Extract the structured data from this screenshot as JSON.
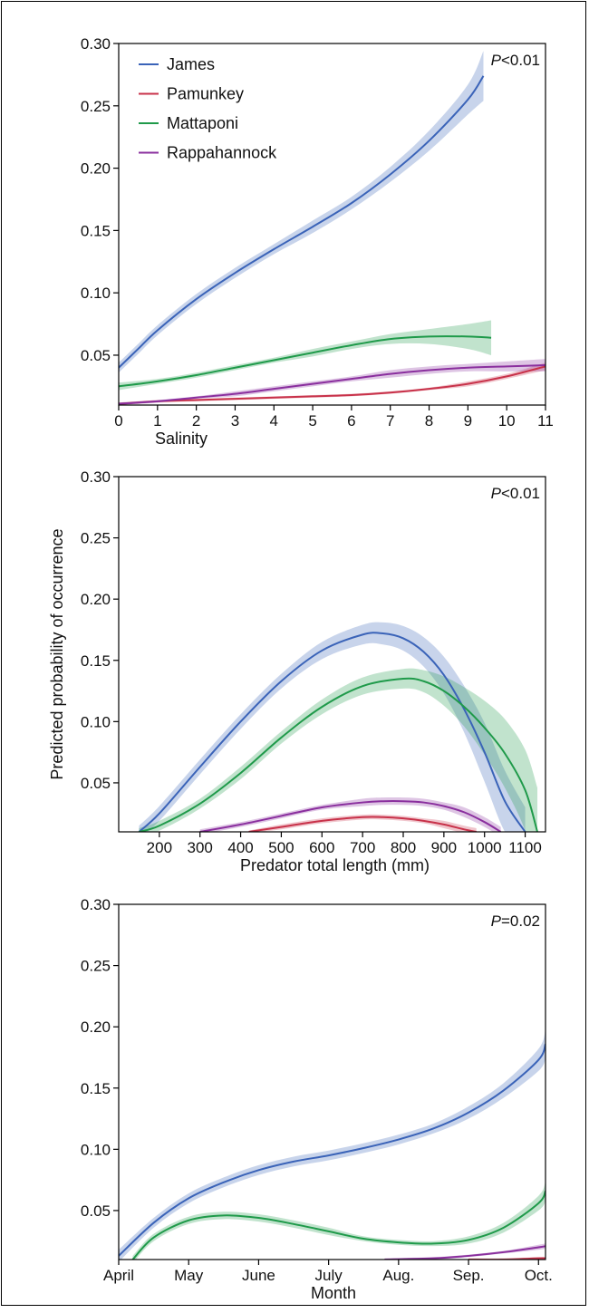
{
  "figure": {
    "ylabel": "Predicted probability of occurrence"
  },
  "colors": {
    "James": "#3a63b8",
    "Pamunkey": "#c8324a",
    "Mattaponi": "#1f9a4a",
    "Rappahannock": "#8a2f9e"
  },
  "chart_data": [
    {
      "type": "line",
      "xlabel": "Salinity",
      "ylabel": "",
      "annotation": {
        "prefix": "P",
        "text": "<0.01"
      },
      "xlim": [
        0,
        11
      ],
      "ylim": [
        0.01,
        0.3
      ],
      "xticks": [
        0,
        1,
        2,
        3,
        4,
        5,
        6,
        7,
        8,
        9,
        10,
        11
      ],
      "xtick_labels": [
        "0",
        "1",
        "2",
        "3",
        "4",
        "5",
        "6",
        "7",
        "8",
        "9",
        "10",
        "11"
      ],
      "yticks": [
        0.05,
        0.1,
        0.15,
        0.2,
        0.25,
        0.3
      ],
      "ytick_labels": [
        "0.05",
        "0.10",
        "0.15",
        "0.20",
        "0.25",
        "0.30"
      ],
      "legend": {
        "position": "top-left"
      },
      "series": [
        {
          "name": "James",
          "x": [
            0,
            0.5,
            1,
            2,
            3,
            4,
            5,
            6,
            7,
            8,
            9,
            9.4
          ],
          "y": [
            0.04,
            0.055,
            0.07,
            0.095,
            0.116,
            0.135,
            0.153,
            0.172,
            0.195,
            0.222,
            0.255,
            0.274
          ],
          "band": [
            0.004,
            0.004,
            0.004,
            0.004,
            0.004,
            0.004,
            0.005,
            0.005,
            0.006,
            0.008,
            0.012,
            0.02
          ]
        },
        {
          "name": "Pamunkey",
          "x": [
            0,
            1,
            2,
            3,
            4,
            5,
            6,
            7,
            8,
            9,
            10,
            11
          ],
          "y": [
            0.011,
            0.013,
            0.014,
            0.015,
            0.016,
            0.017,
            0.018,
            0.02,
            0.023,
            0.027,
            0.033,
            0.041
          ],
          "band": [
            0.001,
            0.001,
            0.001,
            0.001,
            0.001,
            0.001,
            0.001,
            0.001,
            0.001,
            0.002,
            0.002,
            0.003
          ]
        },
        {
          "name": "Mattaponi",
          "x": [
            0,
            1,
            2,
            3,
            4,
            5,
            6,
            7,
            8,
            9,
            9.6
          ],
          "y": [
            0.025,
            0.029,
            0.034,
            0.04,
            0.046,
            0.052,
            0.058,
            0.063,
            0.065,
            0.065,
            0.064
          ],
          "band": [
            0.003,
            0.002,
            0.002,
            0.002,
            0.002,
            0.003,
            0.003,
            0.004,
            0.006,
            0.01,
            0.014
          ]
        },
        {
          "name": "Rappahannock",
          "x": [
            0,
            1,
            2,
            3,
            4,
            5,
            6,
            7,
            8,
            9,
            10,
            11
          ],
          "y": [
            0.011,
            0.013,
            0.016,
            0.019,
            0.023,
            0.027,
            0.031,
            0.035,
            0.038,
            0.04,
            0.041,
            0.042
          ],
          "band": [
            0.001,
            0.001,
            0.001,
            0.002,
            0.002,
            0.002,
            0.002,
            0.003,
            0.003,
            0.003,
            0.004,
            0.005
          ]
        }
      ]
    },
    {
      "type": "line",
      "xlabel": "Predator total length (mm)",
      "ylabel": "",
      "annotation": {
        "prefix": "P",
        "text": "<0.01"
      },
      "xlim": [
        100,
        1150
      ],
      "ylim": [
        0.01,
        0.3
      ],
      "xticks": [
        200,
        300,
        400,
        500,
        600,
        700,
        800,
        900,
        1000,
        1100
      ],
      "xtick_labels": [
        "200",
        "300",
        "400",
        "500",
        "600",
        "700",
        "800",
        "900",
        "1000",
        "1100"
      ],
      "yticks": [
        0.05,
        0.1,
        0.15,
        0.2,
        0.25,
        0.3
      ],
      "ytick_labels": [
        "0.05",
        "0.10",
        "0.15",
        "0.20",
        "0.25",
        "0.30"
      ],
      "series": [
        {
          "name": "James",
          "x": [
            150,
            200,
            300,
            400,
            500,
            600,
            700,
            750,
            800,
            850,
            900,
            950,
            1000,
            1050,
            1100
          ],
          "y": [
            0.01,
            0.025,
            0.063,
            0.1,
            0.133,
            0.158,
            0.171,
            0.172,
            0.168,
            0.157,
            0.138,
            0.11,
            0.075,
            0.035,
            0.01
          ],
          "band": [
            0.005,
            0.006,
            0.006,
            0.006,
            0.006,
            0.007,
            0.008,
            0.009,
            0.01,
            0.012,
            0.015,
            0.019,
            0.024,
            0.025,
            0.02
          ]
        },
        {
          "name": "Mattaponi",
          "x": [
            150,
            200,
            300,
            400,
            500,
            600,
            700,
            800,
            850,
            900,
            950,
            1000,
            1050,
            1100,
            1130
          ],
          "y": [
            0.01,
            0.015,
            0.033,
            0.058,
            0.087,
            0.112,
            0.129,
            0.135,
            0.133,
            0.125,
            0.112,
            0.095,
            0.074,
            0.044,
            0.01
          ],
          "band": [
            0.003,
            0.004,
            0.004,
            0.005,
            0.005,
            0.006,
            0.007,
            0.008,
            0.009,
            0.012,
            0.016,
            0.022,
            0.028,
            0.033,
            0.036
          ]
        },
        {
          "name": "Pamunkey",
          "x": [
            420,
            500,
            600,
            700,
            750,
            800,
            850,
            900,
            950,
            980
          ],
          "y": [
            0.01,
            0.014,
            0.019,
            0.022,
            0.022,
            0.021,
            0.019,
            0.016,
            0.012,
            0.01
          ],
          "band": [
            0.001,
            0.002,
            0.002,
            0.002,
            0.002,
            0.002,
            0.002,
            0.003,
            0.003,
            0.003
          ]
        },
        {
          "name": "Rappahannock",
          "x": [
            300,
            400,
            500,
            600,
            700,
            750,
            800,
            850,
            900,
            950,
            1000,
            1040
          ],
          "y": [
            0.01,
            0.016,
            0.023,
            0.03,
            0.034,
            0.035,
            0.035,
            0.034,
            0.031,
            0.026,
            0.018,
            0.01
          ],
          "band": [
            0.002,
            0.002,
            0.002,
            0.002,
            0.003,
            0.003,
            0.003,
            0.003,
            0.003,
            0.004,
            0.004,
            0.004
          ]
        }
      ]
    },
    {
      "type": "line",
      "xlabel": "Month",
      "ylabel": "",
      "annotation": {
        "prefix": "P",
        "text": "=0.02"
      },
      "xlim": [
        0,
        6.1
      ],
      "ylim": [
        0.01,
        0.3
      ],
      "xticks": [
        0,
        1,
        2,
        3,
        4,
        5,
        6
      ],
      "xtick_labels": [
        "April",
        "May",
        "June",
        "July",
        "Aug.",
        "Sep.",
        "Oct."
      ],
      "yticks": [
        0.05,
        0.1,
        0.15,
        0.2,
        0.25,
        0.3
      ],
      "ytick_labels": [
        "0.05",
        "0.10",
        "0.15",
        "0.20",
        "0.25",
        "0.30"
      ],
      "series": [
        {
          "name": "James",
          "x": [
            0,
            0.5,
            1,
            1.5,
            2,
            2.5,
            3,
            3.5,
            4,
            4.5,
            5,
            5.5,
            6,
            6.1
          ],
          "y": [
            0.013,
            0.04,
            0.06,
            0.073,
            0.083,
            0.09,
            0.095,
            0.101,
            0.108,
            0.117,
            0.13,
            0.148,
            0.173,
            0.186
          ],
          "band": [
            0.005,
            0.004,
            0.004,
            0.004,
            0.004,
            0.004,
            0.004,
            0.004,
            0.004,
            0.004,
            0.005,
            0.006,
            0.009,
            0.012
          ]
        },
        {
          "name": "Mattaponi",
          "x": [
            0.2,
            0.5,
            1,
            1.5,
            2,
            2.5,
            3,
            3.5,
            4,
            4.5,
            5,
            5.5,
            6,
            6.1
          ],
          "y": [
            0.01,
            0.028,
            0.042,
            0.046,
            0.044,
            0.039,
            0.033,
            0.027,
            0.024,
            0.023,
            0.026,
            0.036,
            0.056,
            0.066
          ],
          "band": [
            0.003,
            0.003,
            0.003,
            0.003,
            0.003,
            0.003,
            0.003,
            0.002,
            0.002,
            0.002,
            0.003,
            0.004,
            0.006,
            0.008
          ]
        },
        {
          "name": "Rappahannock",
          "x": [
            3.8,
            4.5,
            5,
            5.5,
            6,
            6.1
          ],
          "y": [
            0.01,
            0.011,
            0.013,
            0.016,
            0.02,
            0.021
          ],
          "band": [
            0.001,
            0.001,
            0.001,
            0.001,
            0.002,
            0.002
          ]
        },
        {
          "name": "Pamunkey",
          "x": [
            5.0,
            5.5,
            6,
            6.1
          ],
          "y": [
            0.01,
            0.01,
            0.011,
            0.011
          ],
          "band": [
            0.001,
            0.001,
            0.001,
            0.001
          ]
        }
      ]
    }
  ]
}
